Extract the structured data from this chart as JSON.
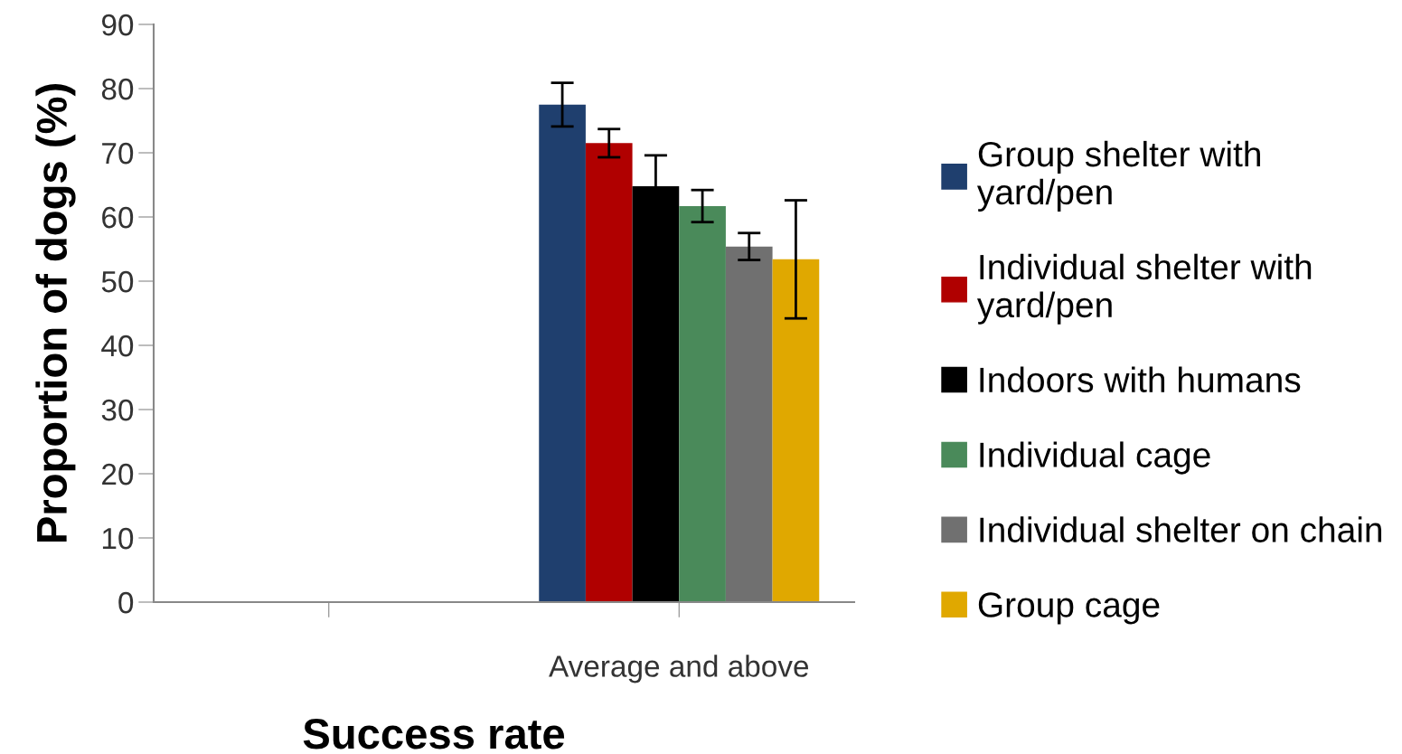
{
  "chart_data": {
    "type": "bar",
    "xlabel": "Success rate",
    "ylabel": "Proportion of dogs (%)",
    "categories": [
      null,
      "Average and above"
    ],
    "series": [
      {
        "name": "Group shelter with\nyard/pen",
        "color": "#1f3f6e",
        "values": [
          null,
          77.5
        ],
        "errors": [
          null,
          3.4
        ]
      },
      {
        "name": "Individual shelter with\nyard/pen",
        "color": "#b00000",
        "values": [
          null,
          71.5
        ],
        "errors": [
          null,
          2.2
        ]
      },
      {
        "name": "Indoors with humans",
        "color": "#000000",
        "values": [
          null,
          64.8
        ],
        "errors": [
          null,
          4.8
        ]
      },
      {
        "name": "Individual cage",
        "color": "#4a8a5a",
        "values": [
          null,
          61.7
        ],
        "errors": [
          null,
          2.5
        ]
      },
      {
        "name": "Individual shelter on chain",
        "color": "#707070",
        "values": [
          null,
          55.4
        ],
        "errors": [
          null,
          2.1
        ]
      },
      {
        "name": "Group cage",
        "color": "#e0a800",
        "values": [
          null,
          53.4
        ],
        "errors": [
          null,
          9.2
        ]
      }
    ],
    "ylim": [
      0,
      90
    ],
    "yticks": [
      0,
      10,
      20,
      30,
      40,
      50,
      60,
      70,
      80,
      90
    ],
    "grid": false,
    "legend": "right"
  }
}
